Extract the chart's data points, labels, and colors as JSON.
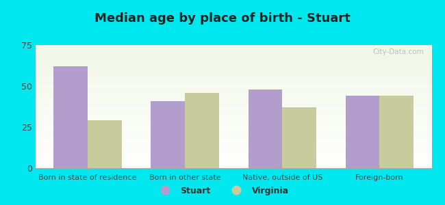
{
  "title": "Median age by place of birth - Stuart",
  "categories": [
    "Born in state of residence",
    "Born in other state",
    "Native, outside of US",
    "Foreign-born"
  ],
  "stuart_values": [
    62,
    41,
    48,
    44
  ],
  "virginia_values": [
    29,
    46,
    37,
    44
  ],
  "stuart_color": "#b39dcc",
  "virginia_color": "#c8cc9d",
  "bg_top_color": "#f0f7e6",
  "bg_bottom_color": "#ffffff",
  "outer_background": "#00e8ef",
  "ylim": [
    0,
    75
  ],
  "yticks": [
    0,
    25,
    50,
    75
  ],
  "bar_width": 0.35,
  "legend_labels": [
    "Stuart",
    "Virginia"
  ],
  "title_fontsize": 13,
  "label_fontsize": 8,
  "tick_fontsize": 9,
  "watermark": "City-Data.com"
}
